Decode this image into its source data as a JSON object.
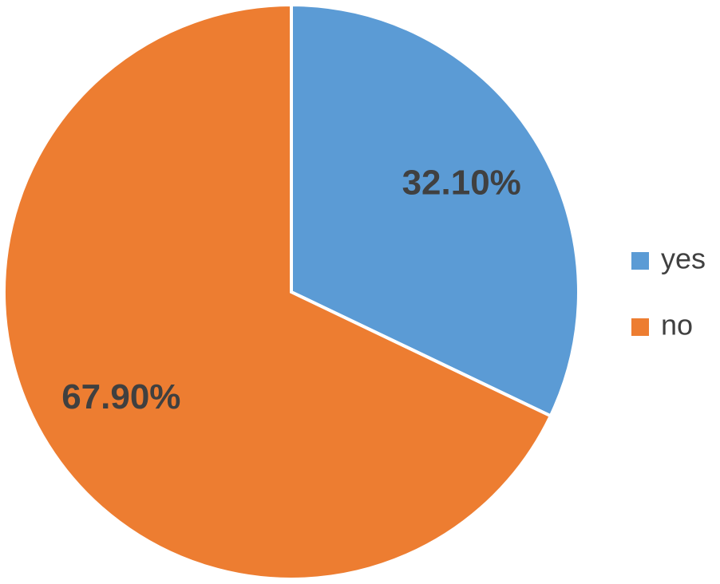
{
  "chart_data": {
    "type": "pie",
    "categories": [
      "yes",
      "no"
    ],
    "values": [
      32.1,
      67.9
    ],
    "value_labels": [
      "32.10%",
      "67.90%"
    ],
    "colors": [
      "#5b9bd5",
      "#ed7d31"
    ],
    "legend": "right"
  }
}
